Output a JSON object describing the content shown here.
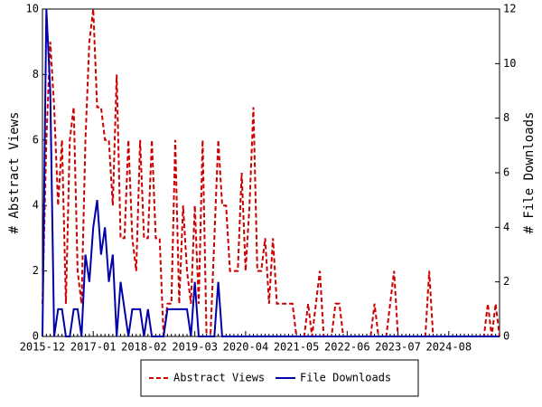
{
  "chart_data": {
    "type": "line",
    "categories": [
      "2015-12",
      null,
      null,
      null,
      null,
      null,
      null,
      null,
      null,
      null,
      null,
      null,
      null,
      "2017-01",
      null,
      null,
      null,
      null,
      null,
      null,
      null,
      null,
      null,
      null,
      null,
      null,
      "2018-02",
      null,
      null,
      null,
      null,
      null,
      null,
      null,
      null,
      null,
      null,
      null,
      null,
      "2019-03",
      null,
      null,
      null,
      null,
      null,
      null,
      null,
      null,
      null,
      null,
      null,
      null,
      "2020-04",
      null,
      null,
      null,
      null,
      null,
      null,
      null,
      null,
      null,
      null,
      null,
      null,
      "2021-05",
      null,
      null,
      null,
      null,
      null,
      null,
      null,
      null,
      null,
      null,
      null,
      null,
      "2022-06",
      null,
      null,
      null,
      null,
      null,
      null,
      null,
      null,
      null,
      null,
      null,
      null,
      "2023-07",
      null,
      null,
      null,
      null,
      null,
      null,
      null,
      null,
      null,
      null,
      null,
      null,
      "2024-08",
      null,
      null,
      null,
      null,
      null,
      null,
      null,
      null,
      null,
      null,
      null,
      null,
      null
    ],
    "series": [
      {
        "name": "Abstract Views",
        "color": "#cc0000",
        "dashed": true,
        "axis": "y",
        "values": [
          1,
          6,
          9,
          7,
          4,
          6,
          1,
          6,
          7,
          2,
          1,
          6,
          9,
          10,
          7,
          7,
          6,
          6,
          4,
          8,
          3,
          3,
          6,
          3,
          2,
          6,
          3,
          3,
          6,
          3,
          3,
          0,
          1,
          1,
          6,
          1,
          4,
          2,
          1,
          4,
          1,
          6,
          0,
          0,
          3,
          6,
          4,
          4,
          2,
          2,
          2,
          5,
          2,
          4,
          7,
          2,
          2,
          3,
          1,
          3,
          1,
          1,
          1,
          1,
          1,
          0,
          0,
          0,
          1,
          0,
          1,
          2,
          0,
          0,
          0,
          1,
          1,
          0,
          0,
          0,
          0,
          0,
          0,
          0,
          0,
          1,
          0,
          0,
          0,
          1,
          2,
          0,
          0,
          0,
          0,
          0,
          0,
          0,
          0,
          2,
          0,
          0,
          0,
          0,
          0,
          0,
          0,
          0,
          0,
          0,
          0,
          0,
          0,
          0,
          1,
          0,
          1,
          0
        ]
      },
      {
        "name": "File Downloads",
        "color": "#0000aa",
        "dashed": false,
        "axis": "y2",
        "values": [
          0,
          12,
          9,
          0,
          1,
          1,
          0,
          0,
          1,
          1,
          0,
          3,
          2,
          4,
          5,
          3,
          4,
          2,
          3,
          0,
          2,
          1,
          0,
          1,
          1,
          1,
          0,
          1,
          0,
          0,
          0,
          0,
          1,
          1,
          1,
          1,
          1,
          1,
          0,
          2,
          0,
          0,
          0,
          0,
          0,
          2,
          0,
          0,
          0,
          0,
          0,
          0,
          0,
          0,
          0,
          0,
          0,
          0,
          0,
          0,
          0,
          0,
          0,
          0,
          0,
          0,
          0,
          0,
          0,
          0,
          0,
          0,
          0,
          0,
          0,
          0,
          0,
          0,
          0,
          0,
          0,
          0,
          0,
          0,
          0,
          0,
          0,
          0,
          0,
          0,
          0,
          0,
          0,
          0,
          0,
          0,
          0,
          0,
          0,
          0,
          0,
          0,
          0,
          0,
          0,
          0,
          0,
          0,
          0,
          0,
          0,
          0,
          0,
          0,
          0,
          0,
          0,
          0
        ]
      }
    ],
    "ylabel": "# Abstract Views",
    "y2label": "# File Downloads",
    "ylim": [
      0,
      10
    ],
    "yticks": [
      0,
      2,
      4,
      6,
      8,
      10
    ],
    "y2lim": [
      0,
      12
    ],
    "y2ticks": [
      0,
      2,
      4,
      6,
      8,
      10,
      12
    ],
    "legend": "bottom"
  }
}
